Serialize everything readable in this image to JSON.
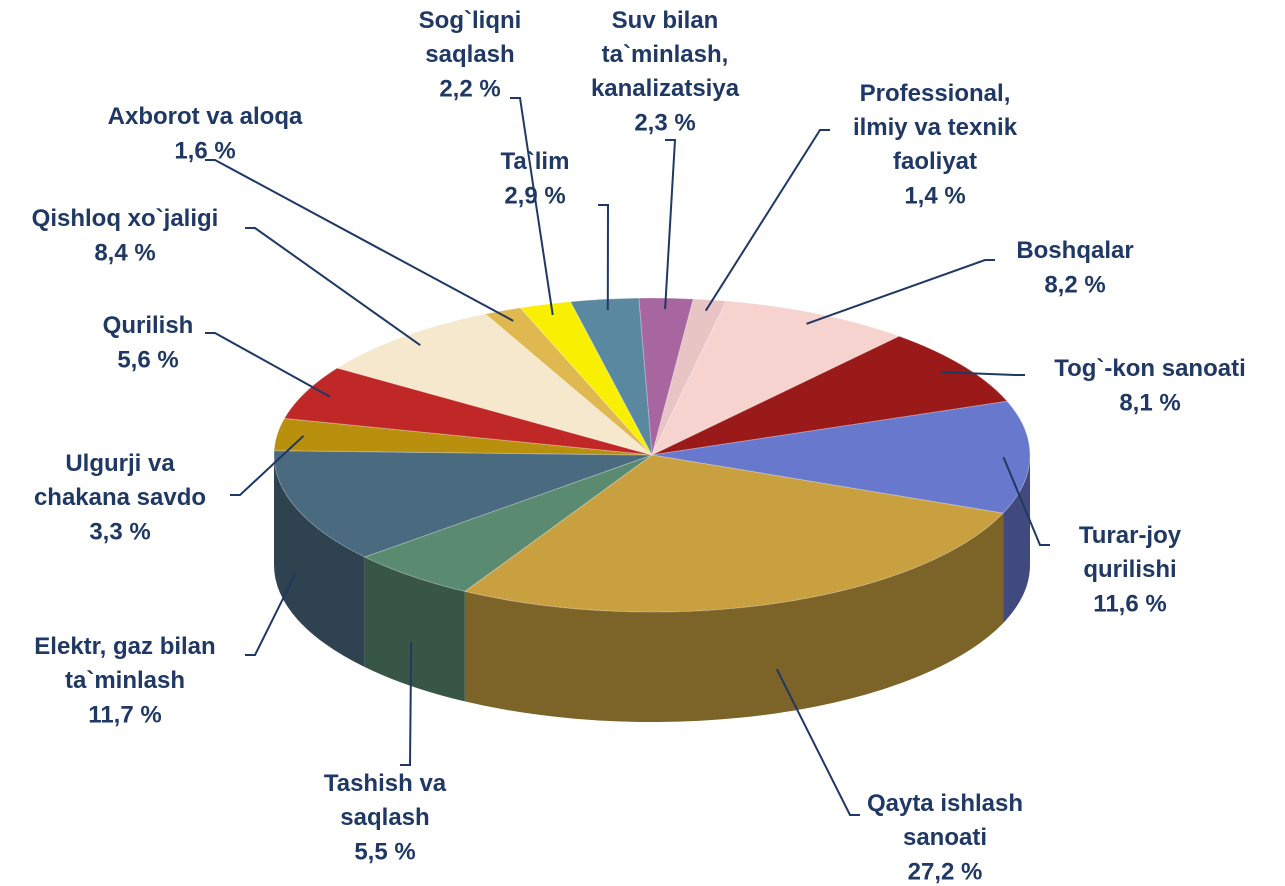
{
  "chart_data": {
    "type": "pie",
    "categories": [
      "Suv bilan ta`minlash, kanalizatsiya",
      "Professional, ilmiy va texnik faoliyat",
      "Boshqalar",
      "Tog`-kon sanoati",
      "Turar-joy qurilishi",
      "Qayta ishlash sanoati",
      "Tashish va saqlash",
      "Elektr, gaz bilan ta`minlash",
      "Ulgurji va chakana savdo",
      "Qurilish",
      "Qishloq xo`jaligi",
      "Axborot va aloqa",
      "Sog`liqni saqlash",
      "Ta`lim"
    ],
    "values": [
      2.3,
      1.4,
      8.2,
      8.1,
      11.6,
      27.2,
      5.5,
      11.7,
      3.3,
      5.6,
      8.4,
      1.6,
      2.2,
      2.9
    ],
    "value_labels": [
      "2,3 %",
      "1,4 %",
      "8,2 %",
      "8,1 %",
      "11,6 %",
      "27,2 %",
      "5,5 %",
      "11,7 %",
      "3,3 %",
      "5,6 %",
      "8,4 %",
      "1,6 %",
      "2,2 %",
      "2,9 %"
    ],
    "colors": [
      "#a866a0",
      "#e8c4c4",
      "#f6d3ce",
      "#9a1a1a",
      "#6878cc",
      "#c8a040",
      "#5a8a70",
      "#4a6a80",
      "#b8900e",
      "#c02828",
      "#f5e8cc",
      "#e0b850",
      "#f8f000",
      "#5a88a0"
    ]
  }
}
